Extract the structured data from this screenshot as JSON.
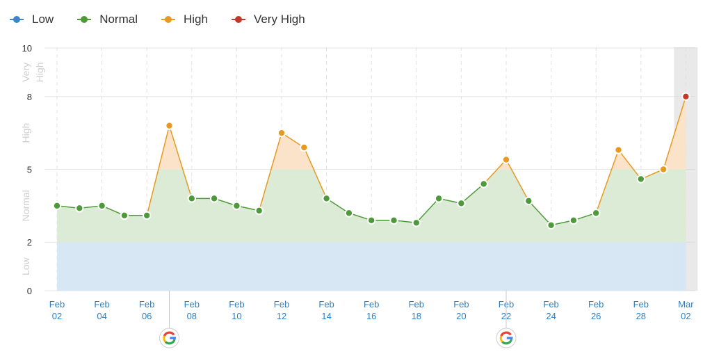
{
  "legend": [
    {
      "label": "Low",
      "color": "#3b86c6"
    },
    {
      "label": "Normal",
      "color": "#4e9a3a"
    },
    {
      "label": "High",
      "color": "#e69a22"
    },
    {
      "label": "Very High",
      "color": "#c0392b"
    }
  ],
  "chart_data": {
    "type": "line",
    "ylim": [
      0,
      10
    ],
    "y_ticks": [
      "0",
      "2",
      "5",
      "8",
      "10"
    ],
    "bands": [
      {
        "label": "Low",
        "from": 0,
        "to": 2,
        "color": "#d5e6f3"
      },
      {
        "label": "Normal",
        "from": 2,
        "to": 5,
        "color": "#dcebd5"
      },
      {
        "label": "High",
        "from": 5,
        "to": 8,
        "color": "#fbe3c9"
      },
      {
        "label": "Very High",
        "from": 8,
        "to": 10,
        "color": "#f6d5cf"
      }
    ],
    "x_tick_labels": [
      [
        "Feb",
        "02"
      ],
      [
        "Feb",
        "04"
      ],
      [
        "Feb",
        "06"
      ],
      [
        "Feb",
        "08"
      ],
      [
        "Feb",
        "10"
      ],
      [
        "Feb",
        "12"
      ],
      [
        "Feb",
        "14"
      ],
      [
        "Feb",
        "16"
      ],
      [
        "Feb",
        "18"
      ],
      [
        "Feb",
        "20"
      ],
      [
        "Feb",
        "22"
      ],
      [
        "Feb",
        "24"
      ],
      [
        "Feb",
        "26"
      ],
      [
        "Feb",
        "28"
      ],
      [
        "Mar",
        "02"
      ]
    ],
    "series": [
      {
        "points": [
          {
            "x": "Feb 02",
            "y": 3.5
          },
          {
            "x": "Feb 03",
            "y": 3.4
          },
          {
            "x": "Feb 04",
            "y": 3.5
          },
          {
            "x": "Feb 05",
            "y": 3.1
          },
          {
            "x": "Feb 06",
            "y": 3.1
          },
          {
            "x": "Feb 07",
            "y": 6.8
          },
          {
            "x": "Feb 08",
            "y": 3.8
          },
          {
            "x": "Feb 09",
            "y": 3.8
          },
          {
            "x": "Feb 10",
            "y": 3.5
          },
          {
            "x": "Feb 11",
            "y": 3.3
          },
          {
            "x": "Feb 12",
            "y": 6.5
          },
          {
            "x": "Feb 13",
            "y": 5.9
          },
          {
            "x": "Feb 14",
            "y": 3.8
          },
          {
            "x": "Feb 15",
            "y": 3.2
          },
          {
            "x": "Feb 16",
            "y": 2.9
          },
          {
            "x": "Feb 17",
            "y": 2.9
          },
          {
            "x": "Feb 18",
            "y": 2.8
          },
          {
            "x": "Feb 19",
            "y": 3.8
          },
          {
            "x": "Feb 20",
            "y": 3.6
          },
          {
            "x": "Feb 21",
            "y": 4.4
          },
          {
            "x": "Feb 22",
            "y": 5.4
          },
          {
            "x": "Feb 23",
            "y": 3.7
          },
          {
            "x": "Feb 24",
            "y": 2.7
          },
          {
            "x": "Feb 25",
            "y": 2.9
          },
          {
            "x": "Feb 26",
            "y": 3.2
          },
          {
            "x": "Feb 27",
            "y": 5.8
          },
          {
            "x": "Feb 28",
            "y": 4.6
          },
          {
            "x": "Feb 29",
            "y": 5.0
          },
          {
            "x": "Mar 01",
            "y": 8.0
          }
        ]
      }
    ],
    "google_update_markers": [
      "Feb 07",
      "Feb 22"
    ],
    "highlighted_day": "Mar 01",
    "google_icon": "google-g-logo"
  }
}
